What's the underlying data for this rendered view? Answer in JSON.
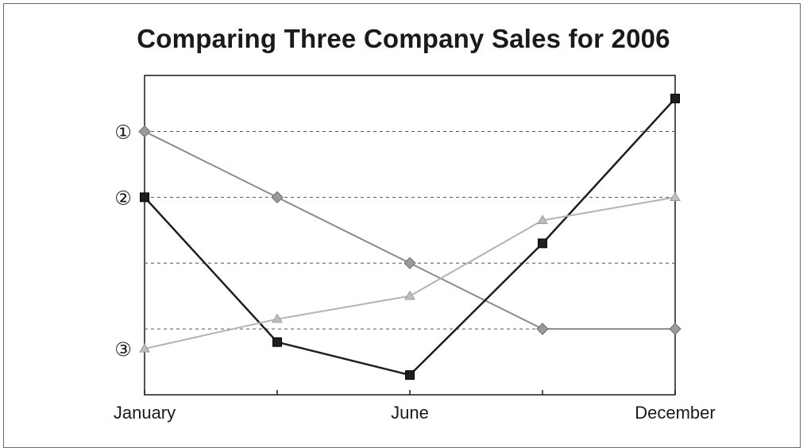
{
  "chart_data": {
    "type": "line",
    "title": "Comparing Three Company Sales for 2006",
    "xlabel": "",
    "ylabel": "",
    "x": [
      0,
      1,
      2,
      3,
      4
    ],
    "x_tick_labels": [
      {
        "x": 0,
        "label": "January"
      },
      {
        "x": 2,
        "label": "June"
      },
      {
        "x": 4,
        "label": "December"
      }
    ],
    "y_markers": [
      {
        "y": 1,
        "label": "①"
      },
      {
        "y": 2,
        "label": "②"
      },
      {
        "y": 4.3,
        "label": "③"
      }
    ],
    "gridlines_y": [
      1,
      2,
      3,
      4
    ],
    "ylim": [
      5,
      0.15
    ],
    "grid": true,
    "series": [
      {
        "marker": "diamond",
        "color": "#8a8a8a",
        "values": [
          1,
          2,
          3,
          4,
          4
        ]
      },
      {
        "marker": "square",
        "color": "#1e1e1e",
        "values": [
          2,
          4.2,
          4.7,
          2.7,
          0.5
        ]
      },
      {
        "marker": "triangle",
        "color": "#b3b3b3",
        "values": [
          4.3,
          3.85,
          3.5,
          2.35,
          2.0
        ]
      }
    ]
  }
}
